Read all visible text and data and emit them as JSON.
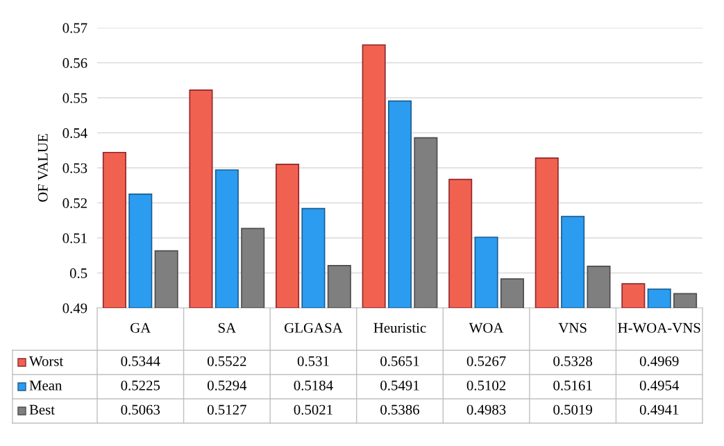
{
  "chart_data": {
    "type": "bar",
    "ylabel": "OF VALUE",
    "categories": [
      "GA",
      "SA",
      "GLGASA",
      "Heuristic",
      "WOA",
      "VNS",
      "H-WOA-VNS"
    ],
    "series": [
      {
        "name": "Worst",
        "color": "#f0624f",
        "values": [
          0.5344,
          0.5522,
          0.531,
          0.5651,
          0.5267,
          0.5328,
          0.4969
        ]
      },
      {
        "name": "Mean",
        "color": "#2b9cf0",
        "values": [
          0.5225,
          0.5294,
          0.5184,
          0.5491,
          0.5102,
          0.5161,
          0.4954
        ]
      },
      {
        "name": "Best",
        "color": "#7f7f7f",
        "values": [
          0.5063,
          0.5127,
          0.5021,
          0.5386,
          0.4983,
          0.5019,
          0.4941
        ]
      }
    ],
    "ylim": [
      0.49,
      0.57
    ],
    "yticks": [
      0.49,
      0.5,
      0.51,
      0.52,
      0.53,
      0.54,
      0.55,
      0.56,
      0.57
    ],
    "grid": "y",
    "data_labels": true,
    "legend": "bottom left"
  }
}
